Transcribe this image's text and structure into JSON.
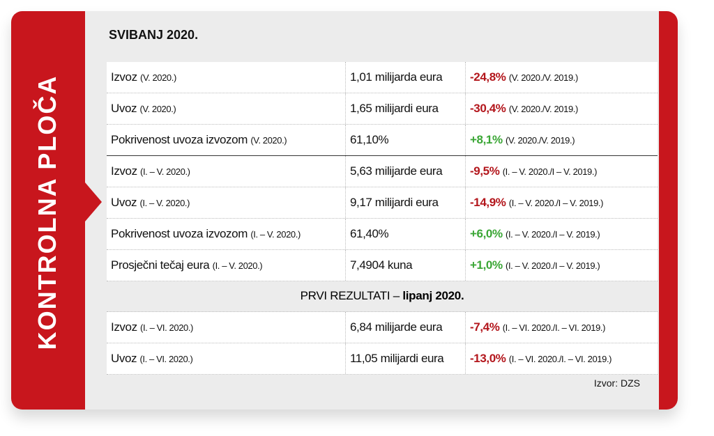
{
  "sidebar": "KONTROLNA PLOČA",
  "section_title": "SVIBANJ 2020.",
  "rows": [
    {
      "label": "Izvoz",
      "label_note": "(V. 2020.)",
      "value": "1,01 milijarda eura",
      "change": "-24,8%",
      "change_note": "(V. 2020./V. 2019.)"
    },
    {
      "label": "Uvoz",
      "label_note": "(V. 2020.)",
      "value": "1,65 milijardi eura",
      "change": "-30,4%",
      "change_note": "(V. 2020./V. 2019.)"
    },
    {
      "label": "Pokrivenost uvoza izvozom",
      "label_note": "(V. 2020.)",
      "value": "61,10%",
      "change": "+8,1%",
      "change_note": "(V. 2020./V. 2019.)"
    },
    {
      "label": "Izvoz",
      "label_note": "(I. – V. 2020.)",
      "value": "5,63 milijarde eura",
      "change": "-9,5%",
      "change_note": "(I. – V. 2020./I – V. 2019.)"
    },
    {
      "label": "Uvoz",
      "label_note": "(I. – V. 2020.)",
      "value": "9,17 milijardi eura",
      "change": "-14,9%",
      "change_note": "(I. – V. 2020./I – V. 2019.)"
    },
    {
      "label": "Pokrivenost uvoza izvozom",
      "label_note": "(I. – V. 2020.)",
      "value": "61,40%",
      "change": "+6,0%",
      "change_note": "(I. – V. 2020./I – V. 2019.)"
    },
    {
      "label": "Prosječni tečaj eura",
      "label_note": "(I. – V. 2020.)",
      "value": "7,4904 kuna",
      "change": "+1,0%",
      "change_note": "(I. – V. 2020./I – V. 2019.)"
    }
  ],
  "subheader": {
    "text": "PRVI REZULTATI –",
    "bold": "lipanj 2020."
  },
  "rows2": [
    {
      "label": "Izvoz",
      "label_note": "(I. – VI. 2020.)",
      "value": "6,84 milijarde eura",
      "change": "-7,4%",
      "change_note": "(I. – VI. 2020./I. – VI. 2019.)"
    },
    {
      "label": "Uvoz",
      "label_note": "(I. – VI. 2020.)",
      "value": "11,05 milijardi eura",
      "change": "-13,0%",
      "change_note": "(I. – VI. 2020./I. – VI. 2019.)"
    }
  ],
  "source": "Izvor: DZS"
}
